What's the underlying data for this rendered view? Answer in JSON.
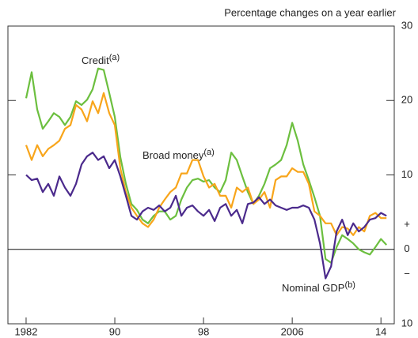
{
  "chart_data": {
    "type": "line",
    "subtitle": "Percentage changes on a year earlier",
    "x": [
      1982,
      1982.5,
      1983,
      1983.5,
      1984,
      1984.5,
      1985,
      1985.5,
      1986,
      1986.5,
      1987,
      1987.5,
      1988,
      1988.5,
      1989,
      1989.5,
      1990,
      1990.5,
      1991,
      1991.5,
      1992,
      1992.5,
      1993,
      1993.5,
      1994,
      1994.5,
      1995,
      1995.5,
      1996,
      1996.5,
      1997,
      1997.5,
      1998,
      1998.5,
      1999,
      1999.5,
      2000,
      2000.5,
      2001,
      2001.5,
      2002,
      2002.5,
      2003,
      2003.5,
      2004,
      2004.5,
      2005,
      2005.5,
      2006,
      2006.5,
      2007,
      2007.5,
      2008,
      2008.5,
      2009,
      2009.5,
      2010,
      2010.5,
      2011,
      2011.5,
      2012,
      2012.5,
      2013,
      2013.5,
      2014,
      2014.5
    ],
    "series": [
      {
        "name": "Credit",
        "note": "(a)",
        "color": "#6cbf3f",
        "values": [
          20.3,
          23.8,
          18.8,
          16.2,
          17.2,
          18.3,
          17.8,
          16.7,
          17.8,
          19.9,
          19.4,
          20.1,
          21.5,
          24.3,
          24.1,
          21,
          17.8,
          12.4,
          8.8,
          6.1,
          5.3,
          4,
          3.5,
          4.5,
          5.1,
          5.1,
          4,
          4.5,
          6.7,
          8.3,
          9.3,
          9.5,
          9.1,
          9.3,
          8.3,
          7.7,
          9.3,
          13,
          12,
          9.8,
          7.7,
          6.1,
          7.2,
          8.8,
          10.9,
          11.4,
          12,
          14,
          17,
          14.6,
          11.4,
          9.3,
          7,
          4.5,
          -1.3,
          -1.8,
          0.3,
          1.9,
          1.4,
          0.8,
          0,
          -0.4,
          -0.7,
          0.3,
          1.4,
          0.6
        ]
      },
      {
        "name": "Broad money",
        "note": "(a)",
        "color": "#f8a51b",
        "values": [
          14,
          12,
          14,
          12.5,
          13.5,
          14,
          14.6,
          16.2,
          16.7,
          19.4,
          18.8,
          17.2,
          19.9,
          18.3,
          21,
          18.3,
          16.7,
          10.9,
          7.7,
          5.6,
          4.5,
          3.5,
          3,
          4,
          5.6,
          6.7,
          7.7,
          8.3,
          10.2,
          10.2,
          12,
          12,
          9.8,
          8.3,
          8.8,
          7.2,
          7.2,
          5.6,
          8.3,
          7.7,
          8.3,
          6.1,
          6.7,
          7.7,
          5.6,
          9.3,
          9.8,
          9.8,
          10.9,
          10.4,
          10.4,
          8.8,
          5.1,
          4.5,
          3.5,
          3.5,
          1.9,
          3,
          2.8,
          1.9,
          3,
          2.4,
          4.5,
          4.9,
          4.2,
          4.2
        ]
      },
      {
        "name": "Nominal GDP",
        "note": "(b)",
        "color": "#4b2a8c",
        "values": [
          10,
          9.3,
          9.5,
          7.7,
          8.8,
          7.2,
          9.8,
          8.3,
          7.2,
          8.8,
          11.4,
          12.5,
          13,
          12,
          12.5,
          10.9,
          12,
          9.8,
          7.2,
          4.5,
          4,
          5.1,
          5.6,
          5.3,
          5.9,
          5.1,
          5.6,
          7.2,
          4.5,
          5.6,
          5.9,
          5.1,
          4.5,
          5.3,
          3.8,
          5.6,
          6.1,
          4.5,
          5.3,
          3.5,
          6.1,
          6.3,
          7,
          6.1,
          6.7,
          5.9,
          5.6,
          5.3,
          5.6,
          5.6,
          5.9,
          5.6,
          4,
          0.8,
          -3.9,
          -2.3,
          2.4,
          4,
          1.9,
          3.5,
          2.4,
          3,
          4,
          4.2,
          4.9,
          4.5
        ]
      }
    ],
    "xlim": [
      1980.36,
      2015.2
    ],
    "xticks": [
      1982,
      {
        "value": 1990,
        "label": "90"
      },
      {
        "value": 1998,
        "label": "98"
      },
      2006,
      {
        "value": 2014,
        "label": "14"
      }
    ],
    "ylim": [
      -10,
      30
    ],
    "yticks": [
      {
        "value": -10,
        "label": "10"
      },
      0,
      10,
      20,
      30
    ],
    "sign_labels": [
      "+",
      "−"
    ]
  }
}
